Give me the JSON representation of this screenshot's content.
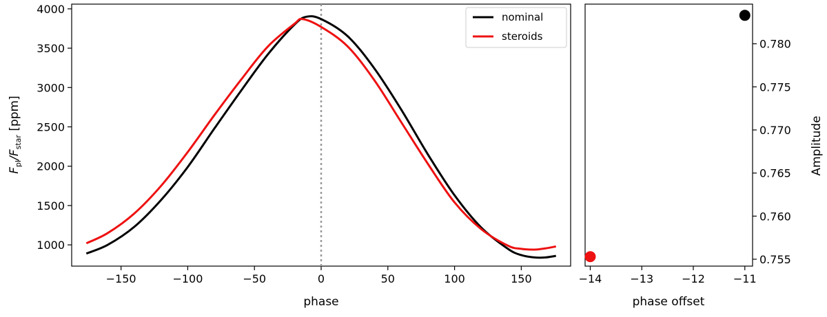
{
  "chart_data": [
    {
      "type": "line",
      "xlabel": "phase",
      "ylabel_main": "F",
      "ylabel_sub1": "pl",
      "ylabel_slash": "/F",
      "ylabel_sub2": "star",
      "ylabel_unit": " [ppm]",
      "xlim": [
        -187,
        187
      ],
      "ylim": [
        730,
        4060
      ],
      "xticks": [
        -150,
        -100,
        -50,
        0,
        50,
        100,
        150
      ],
      "xtick_labels": [
        "−150",
        "−100",
        "−50",
        "0",
        "50",
        "100",
        "150"
      ],
      "yticks": [
        1000,
        1500,
        2000,
        2500,
        3000,
        3500,
        4000
      ],
      "ytick_labels": [
        "1000",
        "1500",
        "2000",
        "2500",
        "3000",
        "3500",
        "4000"
      ],
      "vline": 0,
      "vline_color": "#999999",
      "legend_position": "top-right",
      "series": [
        {
          "name": "nominal",
          "color": "#000000",
          "x": [
            -176,
            -160,
            -140,
            -120,
            -100,
            -80,
            -60,
            -40,
            -20,
            -11,
            0,
            20,
            40,
            60,
            80,
            100,
            120,
            140,
            150,
            160,
            168,
            176
          ],
          "y": [
            890,
            1000,
            1230,
            1570,
            1990,
            2480,
            2960,
            3420,
            3800,
            3900,
            3870,
            3650,
            3240,
            2720,
            2150,
            1630,
            1220,
            950,
            870,
            840,
            840,
            860
          ]
        },
        {
          "name": "steroids",
          "color": "#ee1111",
          "x": [
            -176,
            -160,
            -140,
            -120,
            -100,
            -80,
            -60,
            -40,
            -20,
            -14,
            0,
            20,
            40,
            60,
            80,
            100,
            120,
            140,
            150,
            160,
            168,
            176
          ],
          "y": [
            1020,
            1150,
            1400,
            1750,
            2180,
            2650,
            3100,
            3520,
            3810,
            3870,
            3770,
            3520,
            3090,
            2560,
            2030,
            1540,
            1200,
            990,
            950,
            940,
            955,
            980
          ]
        }
      ]
    },
    {
      "type": "scatter",
      "xlabel": "phase offset",
      "ylabel": "Amplitude",
      "xlim": [
        -14.1,
        -10.85
      ],
      "ylim": [
        0.7542,
        0.7846
      ],
      "xticks": [
        -14,
        -13,
        -12,
        -11
      ],
      "xtick_labels": [
        "−14",
        "−13",
        "−12",
        "−11"
      ],
      "yticks": [
        0.755,
        0.76,
        0.765,
        0.77,
        0.775,
        0.78
      ],
      "ytick_labels": [
        "0.755",
        "0.760",
        "0.765",
        "0.770",
        "0.775",
        "0.780"
      ],
      "points": [
        {
          "name": "steroids",
          "x": -14,
          "y": 0.7553,
          "color": "#ee1111"
        },
        {
          "name": "nominal",
          "x": -11,
          "y": 0.7833,
          "color": "#000000"
        }
      ]
    }
  ]
}
